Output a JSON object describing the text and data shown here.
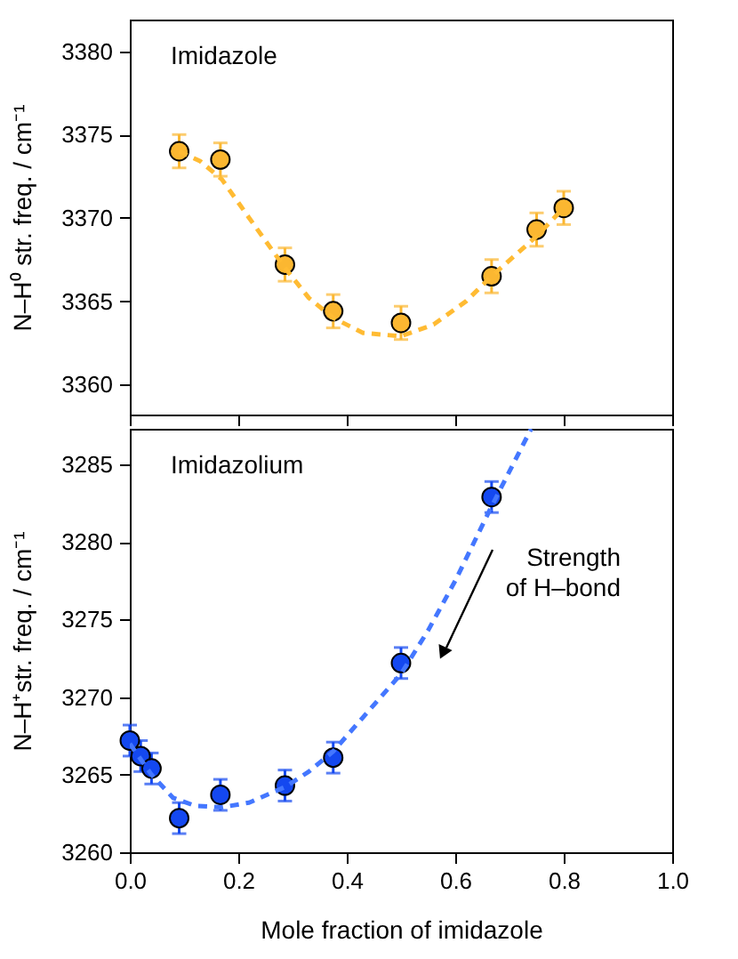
{
  "chart_data": [
    {
      "type": "scatter",
      "ylabel": "N–H⁰ str. freq. / cm⁻¹",
      "annotations": [
        "Imidazole"
      ],
      "xlim": [
        0,
        1
      ],
      "xticks": [
        0,
        0.2,
        0.4,
        0.6,
        0.8,
        1
      ],
      "ylim": [
        3358.2,
        3381.9
      ],
      "yticks": [
        3360,
        3365,
        3370,
        3375,
        3380
      ],
      "tick_labels": "y",
      "grid": false,
      "series": [
        {
          "color": "#fbb731",
          "marker": "circle",
          "x": [
            0.091,
            0.167,
            0.286,
            0.375,
            0.5,
            0.667,
            0.75,
            0.8
          ],
          "values": [
            3374.0,
            3373.5,
            3367.2,
            3364.4,
            3363.7,
            3366.5,
            3369.3,
            3370.6
          ],
          "errors": [
            1,
            1,
            1,
            1,
            1,
            1,
            1,
            1
          ]
        },
        {
          "type": "line",
          "marker": "none",
          "line_style": "dashed",
          "color": "#ffbb33",
          "x": [
            0.091,
            0.13,
            0.17,
            0.22,
            0.286,
            0.33,
            0.375,
            0.43,
            0.5,
            0.56,
            0.62,
            0.667,
            0.75,
            0.8
          ],
          "values": [
            3374.0,
            3373.4,
            3372.3,
            3370.0,
            3367.0,
            3365.2,
            3364.0,
            3363.1,
            3362.9,
            3363.6,
            3365.0,
            3366.5,
            3368.9,
            3370.6
          ]
        }
      ]
    },
    {
      "type": "scatter",
      "xlabel": "Mole fraction of imidazole",
      "ylabel": "N–H⁺str. freq. / cm⁻¹",
      "annotations": [
        "Imidazolium",
        "Strength\nof H–bond"
      ],
      "xlim": [
        0,
        1
      ],
      "xticks": [
        {
          "value": 0,
          "label": "0.0"
        },
        0.2,
        0.4,
        0.6,
        0.8,
        {
          "value": 1,
          "label": "1.0"
        }
      ],
      "ylim": [
        3260,
        3287.3
      ],
      "yticks": [
        3260,
        3265,
        3270,
        3275,
        3280,
        3285
      ],
      "grid": false,
      "series": [
        {
          "color": "#1448f0",
          "marker": "circle",
          "x": [
            0,
            0.02,
            0.04,
            0.091,
            0.167,
            0.286,
            0.375,
            0.5,
            0.667
          ],
          "values": [
            3267.2,
            3266.2,
            3265.4,
            3262.2,
            3263.7,
            3264.3,
            3266.1,
            3272.2,
            3282.9
          ],
          "errors": [
            1,
            1,
            1,
            1,
            1,
            1,
            1,
            1,
            1
          ]
        },
        {
          "type": "line",
          "marker": "none",
          "line_style": "dashed",
          "color": "#4477ff",
          "x": [
            0,
            0.04,
            0.08,
            0.12,
            0.17,
            0.22,
            0.286,
            0.33,
            0.375,
            0.43,
            0.5,
            0.55,
            0.6,
            0.667,
            0.74
          ],
          "values": [
            3267.0,
            3265.0,
            3263.5,
            3263.0,
            3262.9,
            3263.2,
            3264.2,
            3265.2,
            3266.5,
            3268.7,
            3271.5,
            3274.3,
            3277.5,
            3282.3,
            3287.3
          ]
        }
      ]
    }
  ]
}
